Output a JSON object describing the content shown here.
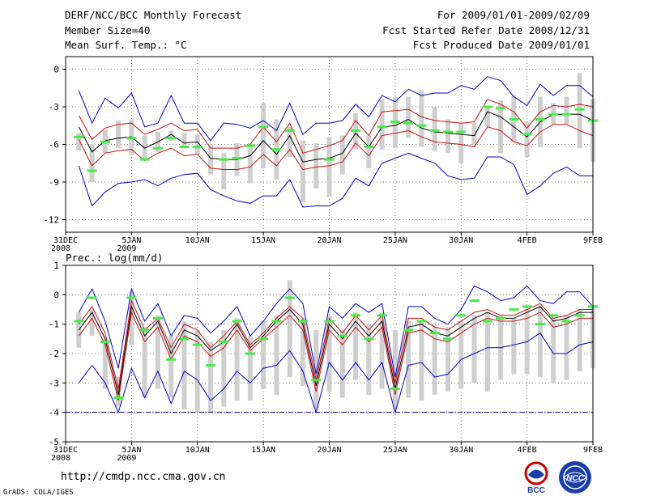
{
  "header": {
    "title": "DERF/NCC/BCC Monthly Forecast",
    "member_size": "Member Size=40",
    "variable": "Mean Surf. Temp.: °C",
    "forecast_period": "For 2009/01/01-2009/02/09",
    "start_ref": "Fcst Started Refer Date 2008/12/31",
    "produced": "Fcst Produced Date 2009/01/01"
  },
  "footer": {
    "url": "http://cmdp.ncc.cma.gov.cn",
    "grads": "GrADS: COLA/IGES",
    "logo_bcc_text": "BCC",
    "logo_ncc_text": "NCC"
  },
  "colors": {
    "mean": "#000000",
    "inner": "#cc1111",
    "outer": "#0000cc",
    "bar": "#cfcfcf",
    "obs": "#44ee44",
    "floor": "#000088",
    "grid": "#555555"
  },
  "chart_data": [
    {
      "type": "line",
      "title": "",
      "ylabel": "",
      "ylim": [
        -13,
        1
      ],
      "yticks": [
        0,
        -3,
        -6,
        -9,
        -12
      ],
      "xlim": [
        0,
        40
      ],
      "xticks": [
        {
          "x": 0,
          "label": "31DEC",
          "sub": "2008"
        },
        {
          "x": 5,
          "label": "5JAN",
          "sub": "2009"
        },
        {
          "x": 10,
          "label": "10JAN",
          "sub": ""
        },
        {
          "x": 15,
          "label": "15JAN",
          "sub": ""
        },
        {
          "x": 20,
          "label": "20JAN",
          "sub": ""
        },
        {
          "x": 25,
          "label": "25JAN",
          "sub": ""
        },
        {
          "x": 30,
          "label": "30JAN",
          "sub": ""
        },
        {
          "x": 35,
          "label": "4FEB",
          "sub": ""
        },
        {
          "x": 40,
          "label": "9FEB",
          "sub": ""
        }
      ],
      "x": [
        1,
        2,
        3,
        4,
        5,
        6,
        7,
        8,
        9,
        10,
        11,
        12,
        13,
        14,
        15,
        16,
        17,
        18,
        19,
        20,
        21,
        22,
        23,
        24,
        25,
        26,
        27,
        28,
        29,
        30,
        31,
        32,
        33,
        34,
        35,
        36,
        37,
        38,
        39,
        40
      ],
      "series": [
        {
          "name": "mean",
          "values": [
            -4.6,
            -6.6,
            -5.7,
            -5.5,
            -5.4,
            -6.3,
            -5.8,
            -5.2,
            -5.9,
            -5.8,
            -7.1,
            -7.2,
            -7.2,
            -6.9,
            -5.7,
            -6.8,
            -5.3,
            -7.4,
            -7.2,
            -7.1,
            -6.7,
            -5.1,
            -6.2,
            -4.6,
            -4.5,
            -4.0,
            -4.7,
            -5.0,
            -5.1,
            -5.2,
            -5.3,
            -3.4,
            -3.8,
            -4.6,
            -5.4,
            -4.2,
            -3.6,
            -3.6,
            -3.6,
            -4.1
          ]
        },
        {
          "name": "upper-spread",
          "values": [
            -3.7,
            -5.6,
            -4.7,
            -4.4,
            -4.3,
            -5.2,
            -4.8,
            -4.3,
            -4.9,
            -4.8,
            -6.3,
            -6.3,
            -6.3,
            -6.0,
            -4.6,
            -5.8,
            -4.3,
            -6.7,
            -6.4,
            -6.1,
            -5.7,
            -4.1,
            -5.3,
            -3.4,
            -3.3,
            -3.2,
            -3.8,
            -4.1,
            -4.2,
            -4.3,
            -4.2,
            -2.4,
            -2.8,
            -3.4,
            -4.7,
            -3.4,
            -2.9,
            -3.0,
            -2.8,
            -3.0
          ]
        },
        {
          "name": "lower-spread",
          "values": [
            -5.6,
            -7.7,
            -6.7,
            -6.5,
            -6.4,
            -7.3,
            -6.7,
            -6.3,
            -6.9,
            -6.8,
            -7.9,
            -8.0,
            -8.0,
            -7.8,
            -6.8,
            -7.7,
            -6.4,
            -8.0,
            -7.8,
            -7.7,
            -7.4,
            -5.9,
            -6.9,
            -5.3,
            -5.1,
            -4.9,
            -5.4,
            -5.8,
            -5.9,
            -6.0,
            -6.2,
            -4.6,
            -4.9,
            -5.8,
            -6.1,
            -5.0,
            -4.4,
            -4.4,
            -4.9,
            -5.3
          ]
        },
        {
          "name": "max",
          "values": [
            -1.7,
            -4.3,
            -2.3,
            -3.1,
            -1.9,
            -4.6,
            -4.3,
            -2.1,
            -4.3,
            -4.3,
            -5.7,
            -4.3,
            -4.4,
            -4.7,
            -4.1,
            -4.9,
            -2.7,
            -5.2,
            -4.3,
            -4.3,
            -4.1,
            -2.8,
            -3.8,
            -2.1,
            -2.6,
            -1.6,
            -2.1,
            -1.9,
            -1.9,
            -1.3,
            -1.6,
            -0.6,
            -0.9,
            -2.2,
            -2.9,
            -1.2,
            -2.1,
            -1.3,
            -1.3,
            -2.2
          ]
        },
        {
          "name": "min",
          "values": [
            -7.7,
            -10.9,
            -9.8,
            -9.1,
            -9.0,
            -8.8,
            -9.3,
            -8.7,
            -8.4,
            -8.3,
            -9.6,
            -10.1,
            -10.5,
            -10.7,
            -10.1,
            -10.1,
            -8.8,
            -11.0,
            -10.9,
            -10.9,
            -10.3,
            -8.7,
            -9.3,
            -7.5,
            -7.1,
            -6.7,
            -7.1,
            -7.5,
            -8.5,
            -8.8,
            -8.7,
            -7.0,
            -7.0,
            -7.6,
            -10.0,
            -9.3,
            -8.3,
            -7.8,
            -8.5,
            -8.5
          ]
        },
        {
          "name": "bar-top",
          "values": [
            -5.1,
            -6.0,
            -4.8,
            -4.1,
            -4.0,
            -5.3,
            -5.0,
            -4.9,
            -5.1,
            -5.2,
            -6.0,
            -6.7,
            -5.9,
            -5.9,
            -2.7,
            -4.0,
            -4.6,
            -5.7,
            -5.9,
            -5.4,
            -5.3,
            -3.5,
            -5.3,
            -2.4,
            -2.2,
            -2.2,
            -1.7,
            -3.0,
            -4.0,
            -4.3,
            -4.3,
            -3.1,
            -2.5,
            -2.1,
            -4.2,
            -2.2,
            -2.7,
            -2.2,
            -0.3,
            -2.4
          ]
        },
        {
          "name": "bar-bottom",
          "values": [
            -6.5,
            -9.0,
            -6.7,
            -6.3,
            -6.8,
            -7.1,
            -6.6,
            -5.7,
            -6.3,
            -6.8,
            -8.4,
            -9.6,
            -8.5,
            -9.1,
            -7.9,
            -8.8,
            -7.0,
            -10.6,
            -9.5,
            -10.2,
            -8.4,
            -6.4,
            -7.9,
            -6.4,
            -6.3,
            -5.5,
            -6.2,
            -6.5,
            -6.7,
            -7.5,
            -6.2,
            -4.6,
            -6.7,
            -5.8,
            -7.0,
            -6.2,
            -4.4,
            -4.4,
            -6.3,
            -7.4
          ]
        },
        {
          "name": "observed",
          "values": [
            -5.4,
            -8.1,
            -5.8,
            null,
            -5.5,
            -7.2,
            -6.3,
            -5.5,
            -6.2,
            -6.2,
            null,
            -7.2,
            -7.1,
            -6.1,
            -4.6,
            -6.4,
            -4.9,
            null,
            null,
            -7.2,
            null,
            -4.9,
            -6.2,
            -4.6,
            -4.2,
            -4.3,
            -4.5,
            -4.9,
            -5.0,
            -5.0,
            null,
            -3.0,
            -3.1,
            -4.0,
            -5.2,
            -4.0,
            -3.6,
            -3.6,
            -3.2,
            -4.1
          ]
        }
      ]
    },
    {
      "type": "line",
      "title": "Prec.: log(mm/d)",
      "ylabel": "",
      "ylim": [
        -5,
        1
      ],
      "yticks": [
        1,
        0,
        -1,
        -2,
        -3,
        -4,
        -5
      ],
      "xlim": [
        0,
        40
      ],
      "floor": -4,
      "xticks": [
        {
          "x": 0,
          "label": "31DEC",
          "sub": "2008"
        },
        {
          "x": 5,
          "label": "5JAN",
          "sub": "2009"
        },
        {
          "x": 10,
          "label": "10JAN",
          "sub": ""
        },
        {
          "x": 15,
          "label": "15JAN",
          "sub": ""
        },
        {
          "x": 20,
          "label": "20JAN",
          "sub": ""
        },
        {
          "x": 25,
          "label": "25JAN",
          "sub": ""
        },
        {
          "x": 30,
          "label": "30JAN",
          "sub": ""
        },
        {
          "x": 35,
          "label": "4FEB",
          "sub": ""
        },
        {
          "x": 40,
          "label": "9FEB",
          "sub": ""
        }
      ],
      "x": [
        1,
        2,
        3,
        4,
        5,
        6,
        7,
        8,
        9,
        10,
        11,
        12,
        13,
        14,
        15,
        16,
        17,
        18,
        19,
        20,
        21,
        22,
        23,
        24,
        25,
        26,
        27,
        28,
        29,
        30,
        31,
        32,
        33,
        34,
        35,
        36,
        37,
        38,
        39,
        40
      ],
      "series": [
        {
          "name": "mean",
          "values": [
            -1.2,
            -0.6,
            -1.5,
            -3.4,
            -0.4,
            -1.4,
            -0.9,
            -2.0,
            -1.2,
            -1.4,
            -1.9,
            -1.6,
            -1.0,
            -1.8,
            -1.4,
            -0.9,
            -0.5,
            -1.0,
            -3.1,
            -1.0,
            -1.5,
            -0.9,
            -1.4,
            -0.9,
            -3.2,
            -1.1,
            -1.0,
            -1.3,
            -1.4,
            -1.1,
            -0.8,
            -0.6,
            -0.8,
            -0.8,
            -0.6,
            -0.4,
            -0.9,
            -0.8,
            -0.6,
            -0.6
          ]
        },
        {
          "name": "upper-spread",
          "values": [
            -1.0,
            -0.4,
            -1.3,
            -3.2,
            -0.2,
            -1.2,
            -0.8,
            -1.8,
            -1.0,
            -1.2,
            -1.8,
            -1.4,
            -0.9,
            -1.7,
            -1.3,
            -0.8,
            -0.4,
            -0.8,
            -2.9,
            -0.8,
            -1.3,
            -0.7,
            -1.2,
            -0.7,
            -3.0,
            -0.8,
            -0.8,
            -1.1,
            -1.2,
            -0.9,
            -0.6,
            -0.5,
            -0.7,
            -0.7,
            -0.5,
            -0.3,
            -0.8,
            -0.7,
            -0.5,
            -0.5
          ]
        },
        {
          "name": "lower-spread",
          "values": [
            -1.4,
            -0.8,
            -1.7,
            -3.6,
            -0.6,
            -1.6,
            -1.1,
            -2.2,
            -1.4,
            -1.6,
            -2.1,
            -1.8,
            -1.2,
            -1.9,
            -1.5,
            -1.1,
            -0.7,
            -1.2,
            -3.3,
            -1.2,
            -1.7,
            -1.1,
            -1.6,
            -1.1,
            -3.4,
            -1.3,
            -1.2,
            -1.5,
            -1.6,
            -1.3,
            -1.0,
            -0.8,
            -0.9,
            -0.9,
            -0.8,
            -0.6,
            -1.1,
            -1.0,
            -0.8,
            -0.8
          ]
        },
        {
          "name": "max",
          "values": [
            -0.6,
            0.2,
            -0.9,
            -2.5,
            0.2,
            -0.9,
            -0.3,
            -1.4,
            -0.7,
            -0.8,
            -1.3,
            -0.9,
            -0.4,
            -1.4,
            -0.9,
            -0.3,
            0.2,
            -0.3,
            -2.7,
            -0.4,
            -0.8,
            -0.3,
            -0.6,
            -0.3,
            -2.8,
            -0.4,
            -0.4,
            -0.8,
            -1.0,
            -0.5,
            0.3,
            0.1,
            -0.2,
            -0.1,
            0.3,
            -0.2,
            -0.3,
            0.1,
            0.1,
            -0.4
          ]
        },
        {
          "name": "min",
          "values": [
            -3.0,
            -2.4,
            -3.0,
            -4.0,
            -2.5,
            -3.5,
            -2.6,
            -3.7,
            -2.6,
            -2.9,
            -3.6,
            -3.2,
            -2.6,
            -3.0,
            -2.5,
            -2.4,
            -1.9,
            -2.6,
            -4.0,
            -2.3,
            -2.9,
            -2.3,
            -2.9,
            -2.3,
            -4.0,
            -2.4,
            -2.3,
            -2.8,
            -2.7,
            -2.2,
            -2.0,
            -1.8,
            -1.8,
            -1.7,
            -1.6,
            -1.3,
            -2.0,
            -2.0,
            -1.7,
            -1.6
          ]
        },
        {
          "name": "bar-top",
          "values": [
            -0.6,
            -0.5,
            -1.5,
            -2.8,
            0.1,
            -1.1,
            -0.7,
            -1.4,
            -0.9,
            -1.2,
            -1.6,
            -1.2,
            -0.8,
            -1.4,
            -0.9,
            -0.7,
            0.5,
            -0.8,
            -1.2,
            -0.7,
            -1.2,
            -0.6,
            -1.0,
            -0.6,
            -1.2,
            -0.9,
            -0.9,
            -1.0,
            -1.1,
            -0.9,
            -0.7,
            -0.6,
            -0.7,
            -0.8,
            -0.5,
            -0.4,
            -0.8,
            -0.7,
            -0.5,
            -0.4
          ]
        },
        {
          "name": "bar-bottom",
          "values": [
            -1.8,
            -1.4,
            -3.2,
            -3.8,
            -1.7,
            -3.5,
            -3.2,
            -3.5,
            -3.9,
            -4.0,
            -4.0,
            -3.8,
            -3.6,
            -3.6,
            -3.2,
            -3.4,
            -2.8,
            -3.1,
            -3.9,
            -3.3,
            -3.5,
            -2.9,
            -3.4,
            -3.2,
            -3.9,
            -3.5,
            -3.6,
            -3.4,
            -3.3,
            -3.2,
            -3.0,
            -3.3,
            -2.9,
            -2.7,
            -2.7,
            -2.8,
            -3.0,
            -2.9,
            -2.6,
            -2.5
          ]
        },
        {
          "name": "observed",
          "values": [
            -0.9,
            -0.1,
            -1.6,
            -3.5,
            -0.1,
            -1.2,
            -0.8,
            -2.2,
            -1.5,
            -1.7,
            -2.4,
            -1.6,
            -0.9,
            -2.0,
            -1.5,
            -0.9,
            -0.1,
            -0.9,
            -2.9,
            -0.9,
            -1.4,
            -0.7,
            -1.5,
            -0.7,
            -3.2,
            -1.2,
            -0.9,
            -1.3,
            -1.5,
            -0.7,
            -0.2,
            -0.9,
            -0.8,
            -0.5,
            -0.4,
            -1.0,
            -0.7,
            -0.9,
            -0.7,
            -0.4
          ]
        }
      ]
    }
  ]
}
